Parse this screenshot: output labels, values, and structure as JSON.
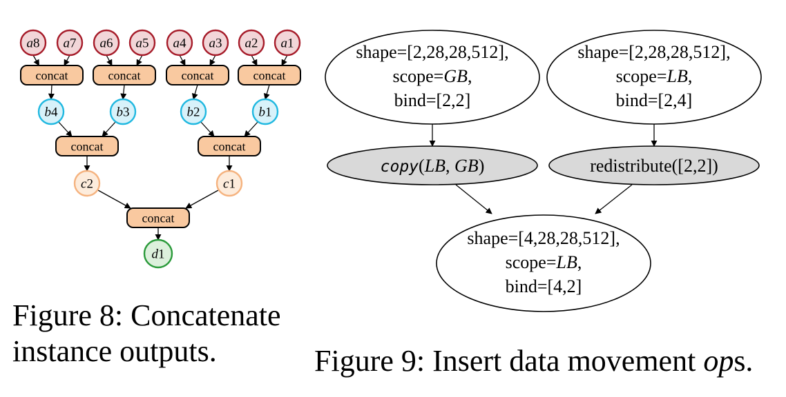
{
  "figure8": {
    "leaf_nodes": [
      "a8",
      "a7",
      "a6",
      "a5",
      "a4",
      "a3",
      "a2",
      "a1"
    ],
    "level1_concat": [
      "concat",
      "concat",
      "concat",
      "concat"
    ],
    "b_nodes": [
      "b4",
      "b3",
      "b2",
      "b1"
    ],
    "level2_concat": [
      "concat",
      "concat"
    ],
    "c_nodes": [
      "c2",
      "c1"
    ],
    "root_concat": "concat",
    "output_node": "d1",
    "caption": {
      "line1": "Figure 8: Concatenate",
      "line2": "instance outputs."
    },
    "colors": {
      "a_stroke": "#a61b29",
      "a_fill": "#f2d6d8",
      "b_stroke": "#20b8e0",
      "b_fill": "#d8f2fa",
      "c_stroke": "#f5b27e",
      "c_fill": "#fdecdc",
      "d_stroke": "#2a9a3a",
      "d_fill": "#dcf0dc",
      "concat_fill": "#f9c9a0"
    }
  },
  "figure9": {
    "input_left": {
      "shape": "shape=[2,28,28,512],",
      "scope_prefix": "scope=",
      "scope_value": "GB",
      "scope_suffix": ",",
      "bind": "bind=[2,2]"
    },
    "input_right": {
      "shape": "shape=[2,28,28,512],",
      "scope_prefix": "scope=",
      "scope_value": "LB",
      "scope_suffix": ",",
      "bind": "bind=[2,4]"
    },
    "op_left": {
      "fn": "copy",
      "open": "(",
      "arg1": "LB",
      "sep": ", ",
      "arg2": "GB",
      "close": ")"
    },
    "op_right": {
      "label": "redistribute([2,2])"
    },
    "output": {
      "shape": "shape=[4,28,28,512],",
      "scope_prefix": "scope=",
      "scope_value": "LB",
      "scope_suffix": ",",
      "bind": "bind=[4,2]"
    },
    "caption": {
      "prefix": "Figure 9: Insert data movement ",
      "ital": "op",
      "suffix": "s."
    },
    "colors": {
      "op_fill": "#d9d9d9"
    }
  }
}
